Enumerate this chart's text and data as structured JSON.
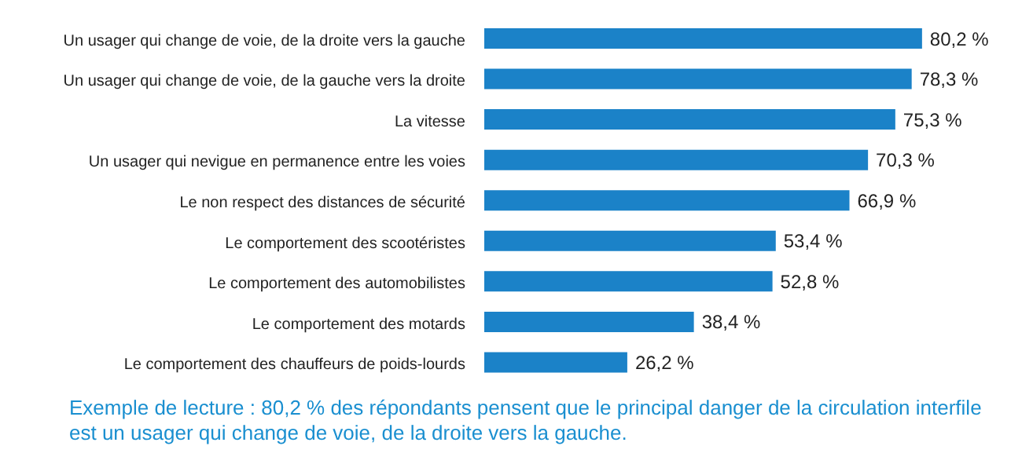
{
  "chart_data": {
    "type": "bar",
    "orientation": "horizontal",
    "categories": [
      "Un usager qui change de voie, de la droite vers la gauche",
      "Un usager qui change de voie, de la gauche vers la droite",
      "La vitesse",
      "Un usager qui nevigue en permanence entre les voies",
      "Le non respect des distances de sécurité",
      "Le comportement des scootéristes",
      "Le comportement des automobilistes",
      "Le comportement des motards",
      "Le comportement des chauffeurs de poids-lourds"
    ],
    "values": [
      80.2,
      78.3,
      75.3,
      70.3,
      66.9,
      53.4,
      52.8,
      38.4,
      26.2
    ],
    "value_labels": [
      "80,2 %",
      "78,3 %",
      "75,3 %",
      "70,3 %",
      "66,9 %",
      "53,4 %",
      "52,8 %",
      "38,4 %",
      "26,2 %"
    ],
    "color": "#1b82c8",
    "annotations": [
      "Exemple de lecture : 80,2 % des répondants pensent que le principal danger de la circulation interfile est un usager qui change de voie, de la droite vers la gauche."
    ]
  }
}
